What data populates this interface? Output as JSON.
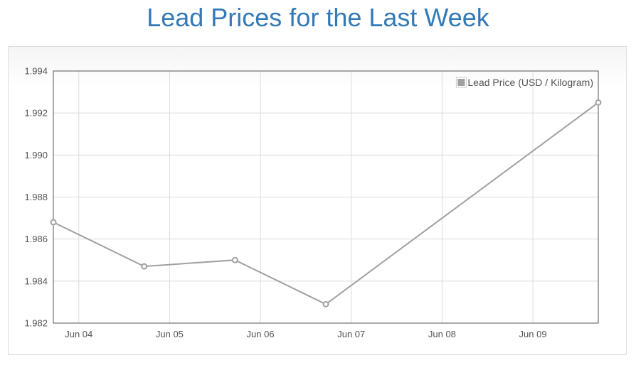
{
  "page": {
    "title": "Lead Prices for the Last Week"
  },
  "chart_data": {
    "type": "line",
    "title": "Lead Prices for the Last Week",
    "xlabel": "",
    "ylabel": "",
    "x_ticks": [
      "Jun 04",
      "Jun 05",
      "Jun 06",
      "Jun 07",
      "Jun 08",
      "Jun 09"
    ],
    "y_ticks": [
      "1.982",
      "1.984",
      "1.986",
      "1.988",
      "1.990",
      "1.992",
      "1.994"
    ],
    "ylim": [
      1.982,
      1.994
    ],
    "xlim": [
      3.72,
      9.72
    ],
    "grid": true,
    "legend_position": "top-right",
    "series": [
      {
        "name": "Lead Price (USD / Kilogram)",
        "color": "#a0a0a0",
        "points": [
          {
            "x": 3.72,
            "y": 1.9868
          },
          {
            "x": 4.72,
            "y": 1.9847
          },
          {
            "x": 5.72,
            "y": 1.985
          },
          {
            "x": 6.72,
            "y": 1.9829
          },
          {
            "x": 9.72,
            "y": 1.9925
          }
        ]
      }
    ]
  }
}
